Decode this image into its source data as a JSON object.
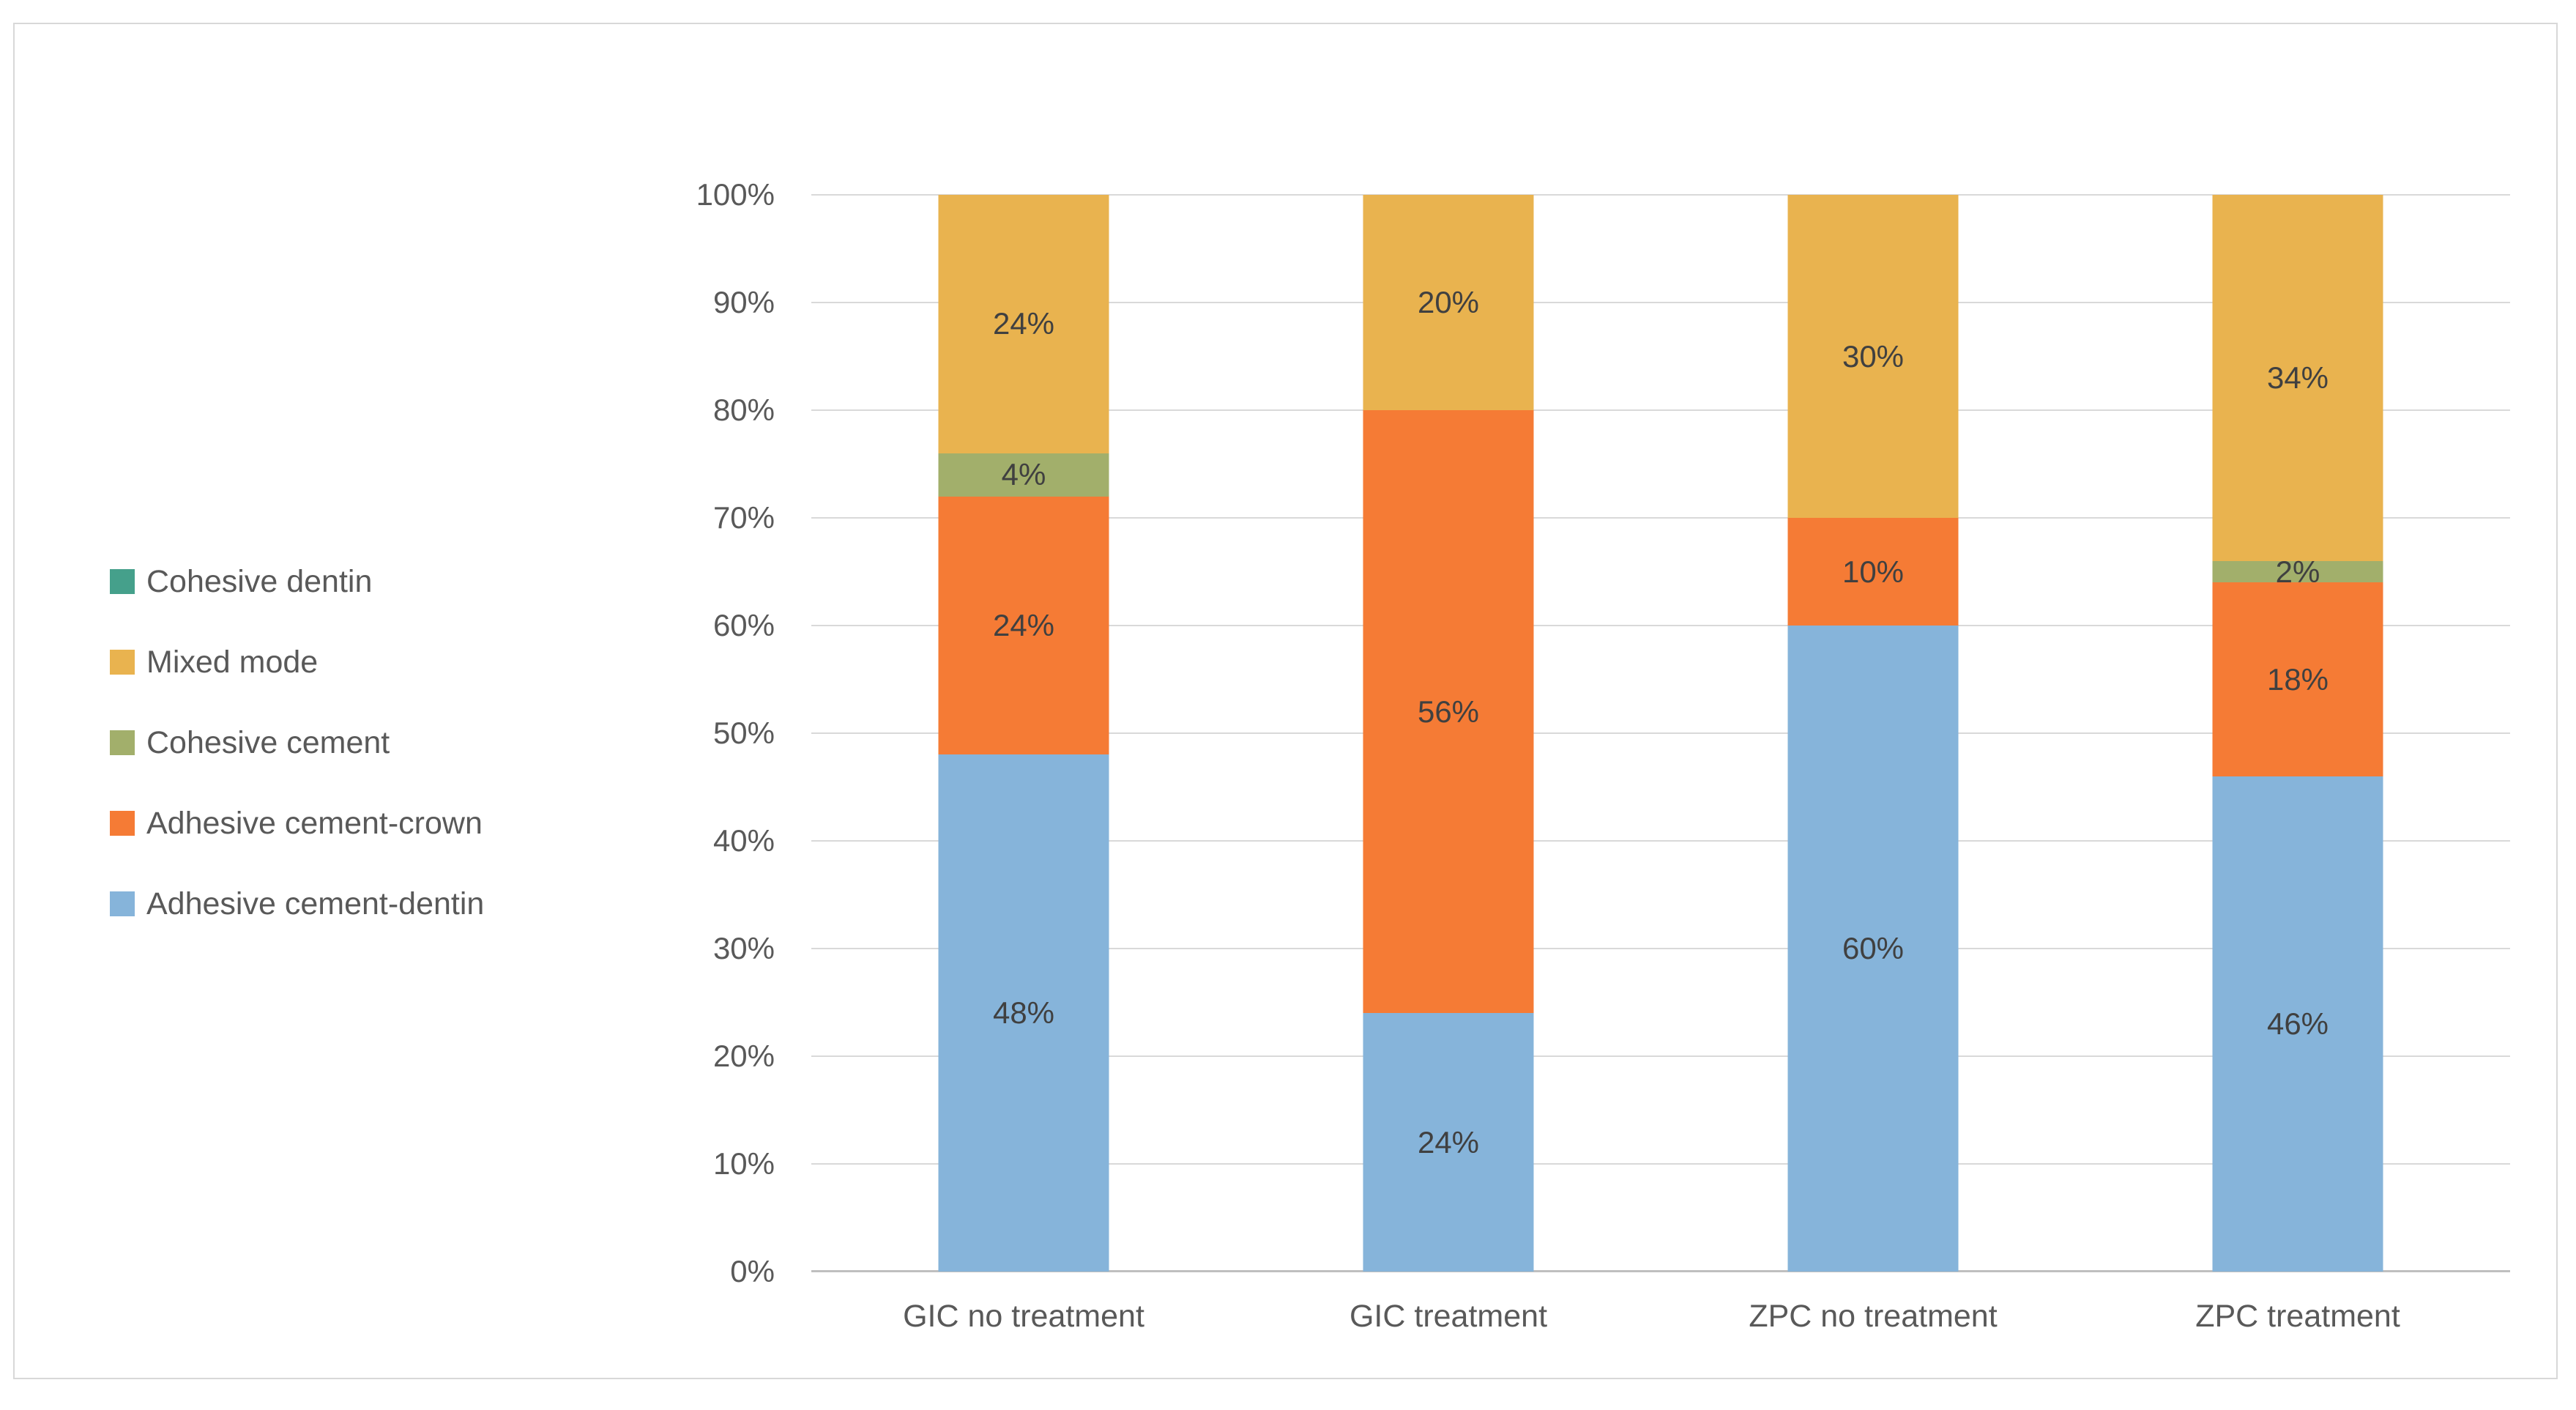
{
  "chart_data": {
    "type": "bar",
    "stacked": true,
    "percent_stacked": true,
    "title": "",
    "xlabel": "",
    "ylabel": "",
    "grid": true,
    "legend_position": "left",
    "ylim": [
      0,
      100
    ],
    "y_ticks": [
      "0%",
      "10%",
      "20%",
      "30%",
      "40%",
      "50%",
      "60%",
      "70%",
      "80%",
      "90%",
      "100%"
    ],
    "categories": [
      "GIC no treatment",
      "GIC treatment",
      "ZPC no treatment",
      "ZPC treatment"
    ],
    "series": [
      {
        "name": "Adhesive cement-dentin",
        "color": "#86B4DA",
        "values": [
          48,
          24,
          60,
          46
        ]
      },
      {
        "name": "Adhesive cement-crown",
        "color": "#F57B35",
        "values": [
          24,
          56,
          10,
          18
        ]
      },
      {
        "name": "Cohesive cement",
        "color": "#A2AF6B",
        "values": [
          4,
          0,
          0,
          2
        ]
      },
      {
        "name": "Mixed mode",
        "color": "#E9B34F",
        "values": [
          24,
          20,
          30,
          34
        ]
      },
      {
        "name": "Cohesive dentin",
        "color": "#45A08B",
        "values": [
          0,
          0,
          0,
          0
        ]
      }
    ],
    "legend_order": [
      "Cohesive dentin",
      "Mixed mode",
      "Cohesive cement",
      "Adhesive cement-crown",
      "Adhesive cement-dentin"
    ],
    "data_label_suffix": "%",
    "colors": {
      "gridline": "#D9D9D9",
      "axis_line": "#BFBFBF",
      "tick_text": "#595959",
      "data_label_text": "#404040",
      "frame_border": "#D8D8D8"
    }
  }
}
